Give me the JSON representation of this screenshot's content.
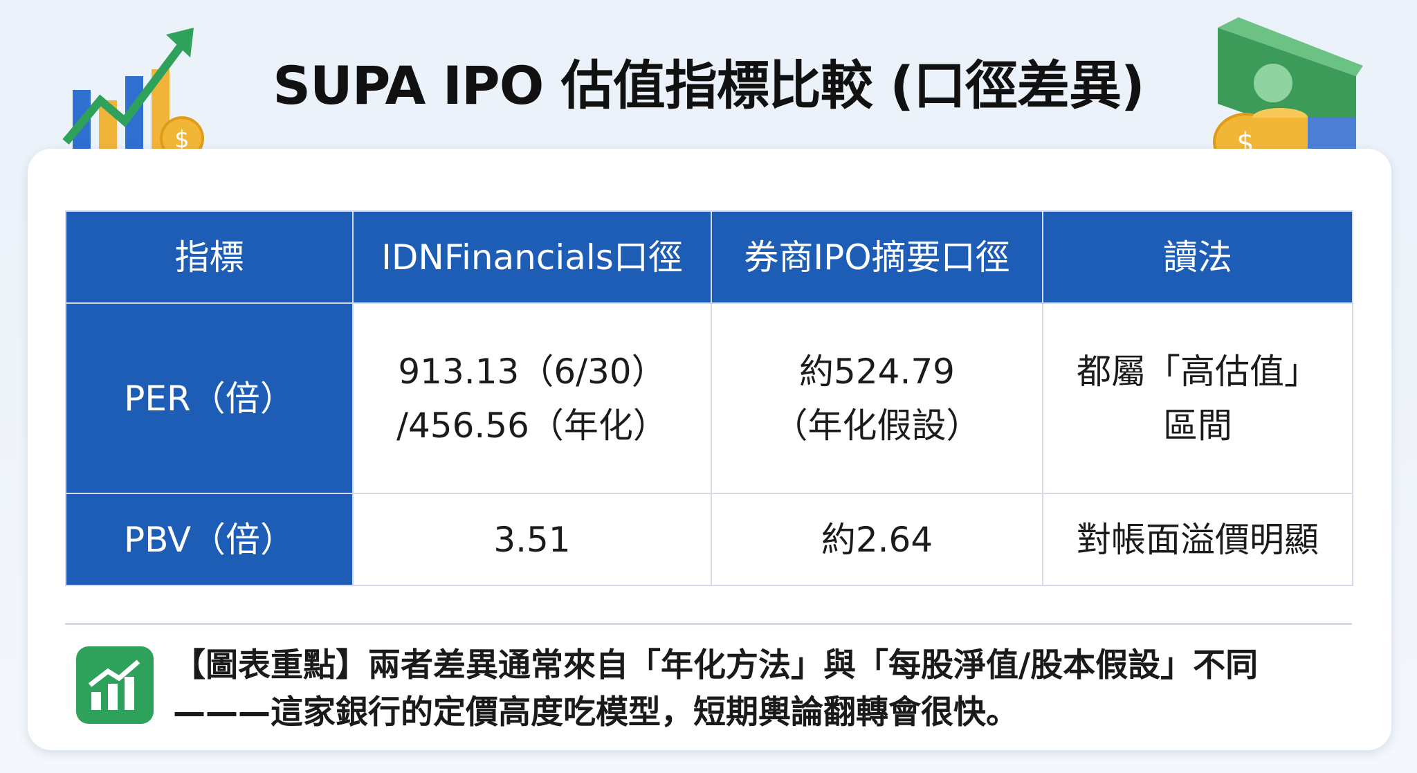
{
  "header": {
    "title": "SUPA IPO 估值指標比較 (口徑差異)"
  },
  "table": {
    "columns": [
      "指標",
      "IDNFinancials口徑",
      "券商IPO摘要口徑",
      "讀法"
    ],
    "rows": [
      [
        [
          "PER（倍）"
        ],
        [
          "913.13（6/30）",
          "/456.56（年化）"
        ],
        [
          "約524.79",
          "（年化假設）"
        ],
        [
          "都屬「高估值」",
          "區間"
        ]
      ],
      [
        [
          "PBV（倍）"
        ],
        [
          "3.51"
        ],
        [
          "約2.64"
        ],
        [
          "對帳面溢價明顯"
        ]
      ]
    ]
  },
  "note": {
    "text": "【圖表重點】兩者差異通常來自「年化方法」與「每股淨值/股本假設」不同———這家銀行的定價高度吃模型，短期輿論翻轉會很快。"
  }
}
